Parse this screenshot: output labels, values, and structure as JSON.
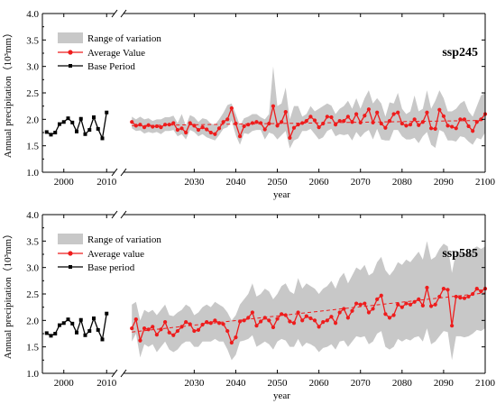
{
  "chart_data": [
    {
      "type": "line",
      "scenario": "ssp245",
      "xlabel": "year",
      "ylabel": "Annual precipitation（10³mm）",
      "ylim": [
        1.0,
        4.0
      ],
      "yticks": [
        "1.0",
        "1.5",
        "2.0",
        "2.5",
        "3.0",
        "3.5",
        "4.0"
      ],
      "xlim_base": [
        1995,
        2011
      ],
      "xlim_future": [
        2013,
        2100
      ],
      "xticks": [
        "2000",
        "2010",
        "2030",
        "2040",
        "2050",
        "2060",
        "2070",
        "2080",
        "2090",
        "2100"
      ],
      "legend": [
        "Range of variation",
        "Average Value",
        "Base Period"
      ],
      "legend_position": "top-left",
      "colors": {
        "average": "#ee1c1c",
        "range": "#c8c8c8",
        "base": "#000000"
      },
      "base_period": {
        "x": [
          1996,
          1997,
          1998,
          1999,
          2000,
          2001,
          2002,
          2003,
          2004,
          2005,
          2006,
          2007,
          2008,
          2009,
          2010
        ],
        "values": [
          1.76,
          1.71,
          1.75,
          1.91,
          1.95,
          2.02,
          1.94,
          1.77,
          2.01,
          1.72,
          1.8,
          2.04,
          1.82,
          1.64,
          2.13
        ]
      },
      "future": {
        "x": [
          2015,
          2016,
          2017,
          2018,
          2019,
          2020,
          2021,
          2022,
          2023,
          2024,
          2025,
          2026,
          2027,
          2028,
          2029,
          2030,
          2031,
          2032,
          2033,
          2034,
          2035,
          2036,
          2037,
          2038,
          2039,
          2040,
          2041,
          2042,
          2043,
          2044,
          2045,
          2046,
          2047,
          2048,
          2049,
          2050,
          2051,
          2052,
          2053,
          2054,
          2055,
          2056,
          2057,
          2058,
          2059,
          2060,
          2061,
          2062,
          2063,
          2064,
          2065,
          2066,
          2067,
          2068,
          2069,
          2070,
          2071,
          2072,
          2073,
          2074,
          2075,
          2076,
          2077,
          2078,
          2079,
          2080,
          2081,
          2082,
          2083,
          2084,
          2085,
          2086,
          2087,
          2088,
          2089,
          2090,
          2091,
          2092,
          2093,
          2094,
          2095,
          2096,
          2097,
          2098,
          2099,
          2100
        ],
        "average": [
          1.95,
          1.88,
          1.9,
          1.85,
          1.89,
          1.86,
          1.87,
          1.85,
          1.9,
          1.9,
          1.93,
          1.8,
          1.83,
          1.75,
          1.93,
          1.88,
          1.8,
          1.85,
          1.81,
          1.75,
          1.72,
          1.83,
          1.95,
          2.0,
          2.21,
          1.92,
          1.68,
          1.87,
          1.9,
          1.93,
          1.95,
          1.93,
          1.81,
          1.92,
          2.25,
          1.88,
          1.95,
          2.14,
          1.65,
          1.84,
          1.9,
          1.93,
          1.97,
          2.05,
          1.98,
          1.85,
          1.92,
          2.05,
          2.04,
          1.9,
          1.97,
          1.97,
          2.05,
          1.95,
          2.1,
          1.94,
          2.07,
          2.19,
          1.94,
          2.13,
          1.92,
          1.84,
          1.97,
          2.1,
          2.13,
          1.92,
          1.88,
          1.9,
          2.0,
          1.89,
          1.95,
          2.13,
          1.83,
          1.82,
          2.18,
          2.06,
          1.88,
          1.86,
          1.83,
          2.0,
          2.0,
          1.87,
          1.78,
          1.95,
          2.0,
          2.1
        ],
        "range_upper": [
          2.05,
          2.0,
          2.05,
          2.0,
          2.02,
          1.97,
          2.0,
          2.0,
          2.04,
          2.04,
          2.07,
          1.93,
          2.1,
          1.88,
          2.08,
          2.04,
          1.95,
          2.02,
          2.0,
          1.92,
          1.9,
          2.0,
          2.12,
          2.27,
          2.3,
          2.1,
          1.88,
          2.02,
          2.05,
          2.1,
          2.1,
          2.04,
          2.0,
          2.1,
          3.0,
          2.25,
          2.3,
          2.6,
          2.0,
          2.25,
          2.25,
          2.05,
          2.1,
          2.25,
          2.15,
          2.2,
          2.25,
          2.3,
          2.26,
          2.1,
          2.2,
          2.25,
          2.35,
          2.2,
          2.4,
          2.2,
          2.4,
          2.55,
          2.3,
          2.4,
          2.3,
          2.05,
          2.32,
          2.3,
          2.5,
          2.2,
          2.1,
          2.15,
          2.45,
          2.15,
          2.2,
          2.55,
          2.2,
          2.35,
          2.55,
          2.4,
          2.15,
          2.15,
          2.2,
          2.3,
          2.35,
          2.15,
          2.05,
          2.25,
          2.45,
          2.5
        ],
        "range_lower": [
          1.83,
          1.78,
          1.79,
          1.73,
          1.76,
          1.74,
          1.76,
          1.72,
          1.78,
          1.78,
          1.8,
          1.68,
          1.72,
          1.62,
          1.8,
          1.76,
          1.68,
          1.72,
          1.66,
          1.63,
          1.6,
          1.7,
          1.82,
          1.85,
          1.98,
          1.7,
          1.52,
          1.74,
          1.72,
          1.78,
          1.8,
          1.8,
          1.62,
          1.75,
          1.72,
          1.62,
          1.7,
          1.78,
          1.45,
          1.6,
          1.64,
          1.78,
          1.78,
          1.82,
          1.72,
          1.62,
          1.66,
          1.78,
          1.82,
          1.68,
          1.72,
          1.7,
          1.72,
          1.6,
          1.76,
          1.66,
          1.75,
          1.8,
          1.62,
          1.82,
          1.62,
          1.6,
          1.6,
          1.8,
          1.8,
          1.68,
          1.62,
          1.62,
          1.65,
          1.55,
          1.68,
          1.76,
          1.52,
          1.46,
          1.8,
          1.76,
          1.6,
          1.6,
          1.58,
          1.68,
          1.66,
          1.58,
          1.52,
          1.65,
          1.62,
          1.75
        ],
        "trend": [
          1.88,
          1.98
        ]
      }
    },
    {
      "type": "line",
      "scenario": "ssp585",
      "xlabel": "year",
      "ylabel": "Annual precipitation（10³mm）",
      "ylim": [
        1.0,
        4.0
      ],
      "yticks": [
        "1.0",
        "1.5",
        "2.0",
        "2.5",
        "3.0",
        "3.5",
        "4.0"
      ],
      "xlim_base": [
        1995,
        2011
      ],
      "xlim_future": [
        2013,
        2100
      ],
      "xticks": [
        "2000",
        "2010",
        "2030",
        "2040",
        "2050",
        "2060",
        "2070",
        "2080",
        "2090",
        "2100"
      ],
      "legend": [
        "Range of variation",
        "Average value",
        "Base period"
      ],
      "legend_position": "top-left",
      "colors": {
        "average": "#ee1c1c",
        "range": "#c8c8c8",
        "base": "#000000"
      },
      "base_period": {
        "x": [
          1996,
          1997,
          1998,
          1999,
          2000,
          2001,
          2002,
          2003,
          2004,
          2005,
          2006,
          2007,
          2008,
          2009,
          2010
        ],
        "values": [
          1.76,
          1.71,
          1.75,
          1.91,
          1.95,
          2.02,
          1.94,
          1.77,
          2.01,
          1.72,
          1.8,
          2.04,
          1.82,
          1.64,
          2.13
        ]
      },
      "future": {
        "x": [
          2015,
          2016,
          2017,
          2018,
          2019,
          2020,
          2021,
          2022,
          2023,
          2024,
          2025,
          2026,
          2027,
          2028,
          2029,
          2030,
          2031,
          2032,
          2033,
          2034,
          2035,
          2036,
          2037,
          2038,
          2039,
          2040,
          2041,
          2042,
          2043,
          2044,
          2045,
          2046,
          2047,
          2048,
          2049,
          2050,
          2051,
          2052,
          2053,
          2054,
          2055,
          2056,
          2057,
          2058,
          2059,
          2060,
          2061,
          2062,
          2063,
          2064,
          2065,
          2066,
          2067,
          2068,
          2069,
          2070,
          2071,
          2072,
          2073,
          2074,
          2075,
          2076,
          2077,
          2078,
          2079,
          2080,
          2081,
          2082,
          2083,
          2084,
          2085,
          2086,
          2087,
          2088,
          2089,
          2090,
          2091,
          2092,
          2093,
          2094,
          2095,
          2096,
          2097,
          2098,
          2099,
          2100
        ],
        "average": [
          1.85,
          2.02,
          1.62,
          1.85,
          1.83,
          1.88,
          1.73,
          1.83,
          1.97,
          1.77,
          1.72,
          1.8,
          1.88,
          1.97,
          1.93,
          1.8,
          1.82,
          1.92,
          1.97,
          1.95,
          2.0,
          1.95,
          1.93,
          1.8,
          1.58,
          1.68,
          1.98,
          2.0,
          2.05,
          2.15,
          1.9,
          1.98,
          2.05,
          2.0,
          1.87,
          2.03,
          2.12,
          2.1,
          1.98,
          1.95,
          2.15,
          2.0,
          2.08,
          2.04,
          2.0,
          1.88,
          1.97,
          2.0,
          2.07,
          1.95,
          2.15,
          2.22,
          2.05,
          2.18,
          2.32,
          2.3,
          2.32,
          2.15,
          2.22,
          2.4,
          2.47,
          2.12,
          2.05,
          2.1,
          2.3,
          2.25,
          2.32,
          2.3,
          2.35,
          2.4,
          2.28,
          2.62,
          2.27,
          2.3,
          2.45,
          2.6,
          2.58,
          1.9,
          2.45,
          2.43,
          2.42,
          2.45,
          2.5,
          2.6,
          2.55,
          2.6
        ],
        "range_upper": [
          2.3,
          2.35,
          2.0,
          2.2,
          2.15,
          2.2,
          2.1,
          2.2,
          2.3,
          2.1,
          2.08,
          2.15,
          2.2,
          2.3,
          2.25,
          2.1,
          2.15,
          2.25,
          2.3,
          2.25,
          2.35,
          2.3,
          2.25,
          2.15,
          2.0,
          2.1,
          2.3,
          2.4,
          2.5,
          2.7,
          2.45,
          2.5,
          2.6,
          2.55,
          2.4,
          2.5,
          2.65,
          2.7,
          2.55,
          2.5,
          2.8,
          2.6,
          2.7,
          2.65,
          2.6,
          2.5,
          2.6,
          2.65,
          2.75,
          2.6,
          2.8,
          2.9,
          2.7,
          2.85,
          3.0,
          2.95,
          3.05,
          2.85,
          2.9,
          3.1,
          3.2,
          2.95,
          2.85,
          2.95,
          3.1,
          3.05,
          3.15,
          3.1,
          3.2,
          3.3,
          3.15,
          3.5,
          3.15,
          3.2,
          3.35,
          3.45,
          3.4,
          2.9,
          3.3,
          3.3,
          3.25,
          3.3,
          3.35,
          3.4,
          3.35,
          3.4
        ],
        "range_lower": [
          1.6,
          1.75,
          1.3,
          1.55,
          1.5,
          1.55,
          1.4,
          1.5,
          1.6,
          1.45,
          1.4,
          1.45,
          1.55,
          1.6,
          1.6,
          1.5,
          1.5,
          1.6,
          1.6,
          1.6,
          1.65,
          1.6,
          1.6,
          1.45,
          1.25,
          1.35,
          1.6,
          1.62,
          1.65,
          1.72,
          1.5,
          1.55,
          1.6,
          1.55,
          1.45,
          1.6,
          1.65,
          1.62,
          1.5,
          1.5,
          1.65,
          1.5,
          1.58,
          1.55,
          1.5,
          1.4,
          1.48,
          1.5,
          1.55,
          1.45,
          1.6,
          1.62,
          1.5,
          1.6,
          1.7,
          1.68,
          1.7,
          1.55,
          1.6,
          1.75,
          1.8,
          1.5,
          1.45,
          1.5,
          1.65,
          1.6,
          1.65,
          1.62,
          1.68,
          1.7,
          1.6,
          1.85,
          1.55,
          1.6,
          1.7,
          1.8,
          1.78,
          1.25,
          1.7,
          1.7,
          1.68,
          1.7,
          1.75,
          1.82,
          1.8,
          1.85
        ],
        "trend": [
          1.78,
          2.52
        ]
      }
    }
  ]
}
